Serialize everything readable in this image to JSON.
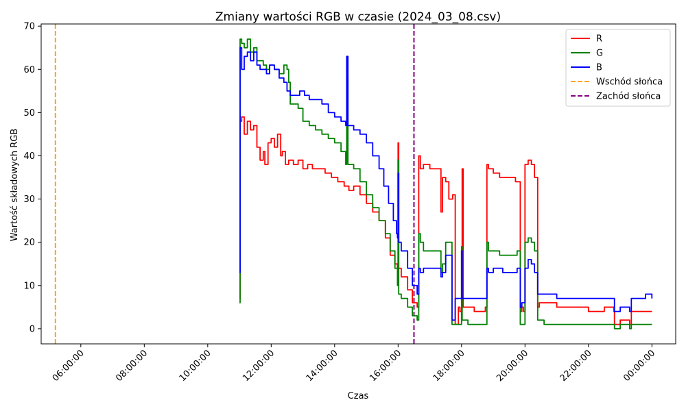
{
  "chart_data": {
    "type": "line",
    "title": "Zmiany wartości RGB w czasie (2024_03_08.csv)",
    "xlabel": "Czas",
    "ylabel": "Wartość składowych RGB",
    "xlim": [
      4.75,
      24.75
    ],
    "ylim": [
      -3.5,
      70.5
    ],
    "x_ticks": [
      {
        "value": 6,
        "label": "06:00:00"
      },
      {
        "value": 8,
        "label": "08:00:00"
      },
      {
        "value": 10,
        "label": "10:00:00"
      },
      {
        "value": 12,
        "label": "12:00:00"
      },
      {
        "value": 14,
        "label": "14:00:00"
      },
      {
        "value": 16,
        "label": "16:00:00"
      },
      {
        "value": 18,
        "label": "18:00:00"
      },
      {
        "value": 20,
        "label": "20:00:00"
      },
      {
        "value": 22,
        "label": "22:00:00"
      },
      {
        "value": 24,
        "label": "00:00:00"
      }
    ],
    "y_ticks": [
      0,
      10,
      20,
      30,
      40,
      50,
      60,
      70
    ],
    "grid": false,
    "legend_position": "top-right",
    "series": [
      {
        "name": "R",
        "color": "#ff0000",
        "x": [
          11.0,
          11.02,
          11.07,
          11.15,
          11.25,
          11.35,
          11.45,
          11.55,
          11.65,
          11.75,
          11.8,
          11.9,
          12.0,
          12.1,
          12.2,
          12.3,
          12.35,
          12.45,
          12.55,
          12.7,
          12.85,
          13.0,
          13.15,
          13.3,
          13.5,
          13.7,
          13.9,
          14.1,
          14.3,
          14.45,
          14.6,
          14.8,
          15.0,
          15.2,
          15.4,
          15.6,
          15.75,
          15.9,
          15.98,
          16.0,
          16.02,
          16.1,
          16.3,
          16.45,
          16.6,
          16.65,
          16.7,
          16.8,
          17.0,
          17.2,
          17.35,
          17.4,
          17.5,
          17.6,
          17.72,
          17.8,
          17.9,
          17.95,
          18.0,
          18.02,
          18.05,
          18.2,
          18.4,
          18.6,
          18.75,
          18.8,
          18.85,
          19.0,
          19.2,
          19.5,
          19.7,
          19.8,
          19.85,
          19.9,
          19.95,
          20.0,
          20.1,
          20.2,
          20.3,
          20.35,
          20.4,
          20.45,
          20.6,
          21.0,
          21.5,
          22.0,
          22.5,
          22.8,
          22.82,
          23.0,
          23.3,
          23.35,
          23.5,
          23.8,
          24.0
        ],
        "y": [
          7,
          48,
          49,
          45,
          48,
          46,
          47,
          42,
          39,
          41,
          38,
          43,
          44,
          42,
          45,
          40,
          41,
          38,
          39,
          38,
          39,
          37,
          38,
          37,
          37,
          36,
          35,
          34,
          33,
          32,
          33,
          31,
          29,
          27,
          25,
          21,
          17,
          15,
          13,
          43,
          14,
          12,
          9,
          6,
          5,
          40,
          37,
          38,
          37,
          37,
          27,
          35,
          34,
          30,
          31,
          1,
          5,
          4,
          4,
          37,
          5,
          5,
          4,
          4,
          5,
          38,
          37,
          36,
          35,
          35,
          34,
          34,
          4,
          5,
          4,
          38,
          39,
          38,
          35,
          35,
          5,
          6,
          6,
          5,
          5,
          4,
          5,
          4,
          1,
          2,
          1,
          4,
          4,
          4,
          4
        ]
      },
      {
        "name": "G",
        "color": "#008000",
        "x": [
          11.0,
          11.02,
          11.07,
          11.15,
          11.25,
          11.35,
          11.45,
          11.55,
          11.65,
          11.75,
          11.85,
          11.95,
          12.1,
          12.25,
          12.4,
          12.5,
          12.55,
          12.6,
          12.7,
          12.85,
          13.0,
          13.2,
          13.4,
          13.6,
          13.8,
          14.0,
          14.2,
          14.35,
          14.38,
          14.42,
          14.6,
          14.8,
          15.0,
          15.2,
          15.4,
          15.6,
          15.75,
          15.9,
          15.98,
          16.0,
          16.02,
          16.1,
          16.3,
          16.45,
          16.6,
          16.65,
          16.7,
          16.8,
          16.9,
          17.0,
          17.2,
          17.35,
          17.4,
          17.5,
          17.62,
          17.7,
          17.8,
          17.9,
          17.95,
          18.0,
          18.02,
          18.05,
          18.2,
          18.5,
          18.75,
          18.8,
          18.85,
          19.0,
          19.2,
          19.5,
          19.75,
          19.8,
          19.85,
          19.9,
          19.95,
          20.0,
          20.1,
          20.2,
          20.3,
          20.35,
          20.4,
          20.45,
          20.6,
          21.0,
          21.5,
          22.0,
          22.5,
          22.8,
          22.82,
          23.0,
          23.3,
          23.35,
          23.5,
          23.8,
          24.0
        ],
        "y": [
          6,
          67,
          66,
          65,
          67,
          64,
          65,
          62,
          62,
          61,
          60,
          61,
          60,
          59,
          61,
          60,
          57,
          52,
          52,
          51,
          48,
          47,
          46,
          45,
          44,
          43,
          41,
          38,
          58,
          38,
          37,
          34,
          31,
          28,
          25,
          22,
          18,
          14,
          10,
          39,
          8,
          7,
          5,
          3,
          2,
          22,
          20,
          18,
          18,
          18,
          18,
          13,
          15,
          20,
          20,
          1,
          1,
          1,
          1,
          19,
          2,
          2,
          1,
          1,
          1,
          20,
          18,
          18,
          17,
          17,
          18,
          18,
          1,
          1,
          1,
          20,
          21,
          20,
          18,
          18,
          2,
          2,
          1,
          1,
          1,
          1,
          1,
          1,
          0,
          1,
          0,
          1,
          1,
          1,
          1
        ]
      },
      {
        "name": "B",
        "color": "#0000ff",
        "x": [
          11.0,
          11.02,
          11.07,
          11.15,
          11.25,
          11.35,
          11.45,
          11.55,
          11.65,
          11.75,
          11.85,
          11.95,
          12.1,
          12.25,
          12.4,
          12.5,
          12.6,
          12.75,
          12.9,
          13.05,
          13.2,
          13.4,
          13.6,
          13.8,
          14.0,
          14.2,
          14.35,
          14.38,
          14.42,
          14.6,
          14.8,
          15.0,
          15.2,
          15.4,
          15.55,
          15.7,
          15.85,
          15.95,
          15.98,
          16.0,
          16.02,
          16.1,
          16.3,
          16.45,
          16.6,
          16.65,
          16.7,
          16.8,
          16.9,
          17.0,
          17.2,
          17.35,
          17.4,
          17.5,
          17.6,
          17.7,
          17.8,
          17.9,
          17.95,
          18.0,
          18.02,
          18.05,
          18.2,
          18.5,
          18.75,
          18.8,
          18.85,
          19.0,
          19.3,
          19.6,
          19.75,
          19.8,
          19.85,
          19.9,
          19.95,
          20.0,
          20.1,
          20.2,
          20.3,
          20.35,
          20.4,
          20.45,
          20.6,
          21.0,
          21.5,
          22.0,
          22.5,
          22.8,
          22.82,
          23.0,
          23.3,
          23.35,
          23.5,
          23.8,
          24.0
        ],
        "y": [
          13,
          65,
          60,
          63,
          64,
          62,
          64,
          61,
          60,
          60,
          59,
          61,
          60,
          58,
          57,
          55,
          54,
          54,
          55,
          54,
          53,
          53,
          52,
          50,
          49,
          48,
          47,
          63,
          47,
          46,
          45,
          43,
          40,
          37,
          33,
          29,
          25,
          22,
          21,
          36,
          20,
          18,
          14,
          10,
          8,
          14,
          13,
          14,
          14,
          14,
          14,
          12,
          13,
          17,
          17,
          2,
          7,
          7,
          7,
          18,
          7,
          7,
          7,
          7,
          7,
          14,
          13,
          14,
          13,
          13,
          14,
          14,
          5,
          6,
          6,
          14,
          16,
          15,
          13,
          13,
          8,
          8,
          8,
          7,
          7,
          7,
          7,
          7,
          4,
          5,
          4,
          7,
          7,
          8,
          7
        ]
      }
    ],
    "reference_lines": [
      {
        "name": "Wschód słońca",
        "x": 5.2,
        "color": "#ffa500"
      },
      {
        "name": "Zachód słońca",
        "x": 16.5,
        "color": "#800080"
      }
    ]
  }
}
